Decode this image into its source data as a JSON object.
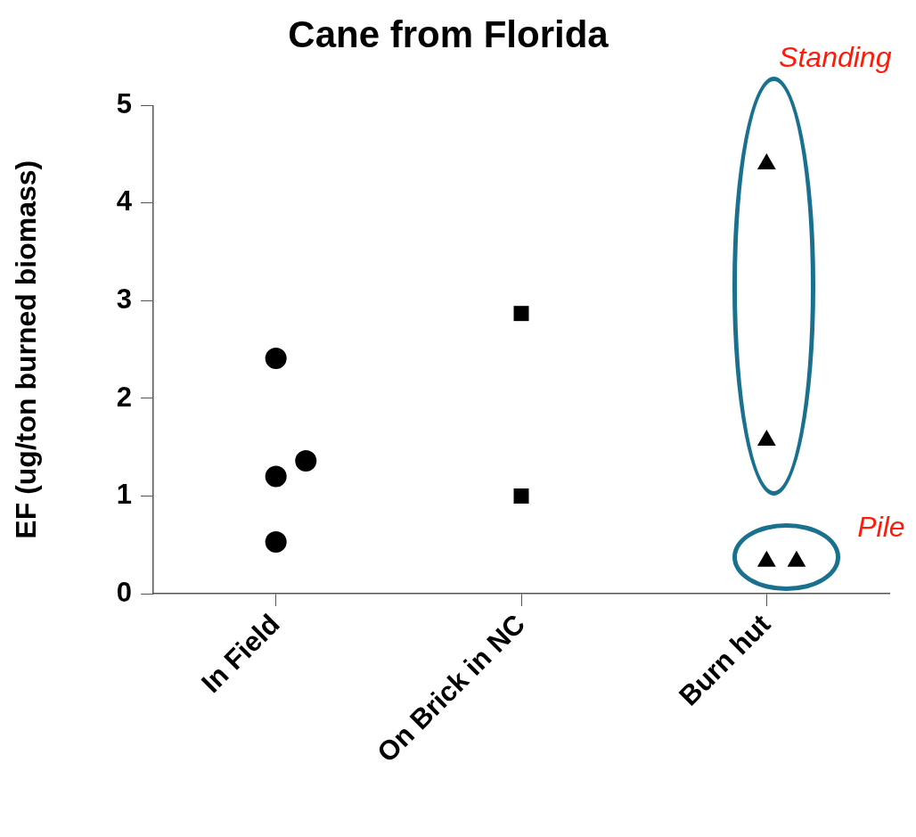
{
  "chart_data": {
    "type": "scatter",
    "title": "Cane from Florida",
    "ylabel": "EF (ug/ton burned biomass)",
    "categories": [
      "In Field",
      "On Brick in NC",
      "Burn hut"
    ],
    "ylim": [
      0,
      5
    ],
    "yticks": [
      0,
      1,
      2,
      3,
      4,
      5
    ],
    "grid": false,
    "legend": false,
    "annotations": [
      "Standing",
      "Pile"
    ],
    "series": [
      {
        "marker": "circle",
        "color": "#000000",
        "x": [
          "In Field",
          "In Field",
          "In Field",
          "In Field"
        ],
        "values": [
          2.41,
          1.2,
          1.36,
          0.53
        ]
      },
      {
        "marker": "square",
        "color": "#000000",
        "x": [
          "On Brick in NC",
          "On Brick in NC"
        ],
        "values": [
          2.87,
          1.0
        ]
      },
      {
        "marker": "triangle",
        "color": "#000000",
        "x": [
          "Burn hut",
          "Burn hut",
          "Burn hut",
          "Burn hut"
        ],
        "values": [
          4.4,
          1.57,
          0.33,
          0.33
        ]
      }
    ]
  }
}
